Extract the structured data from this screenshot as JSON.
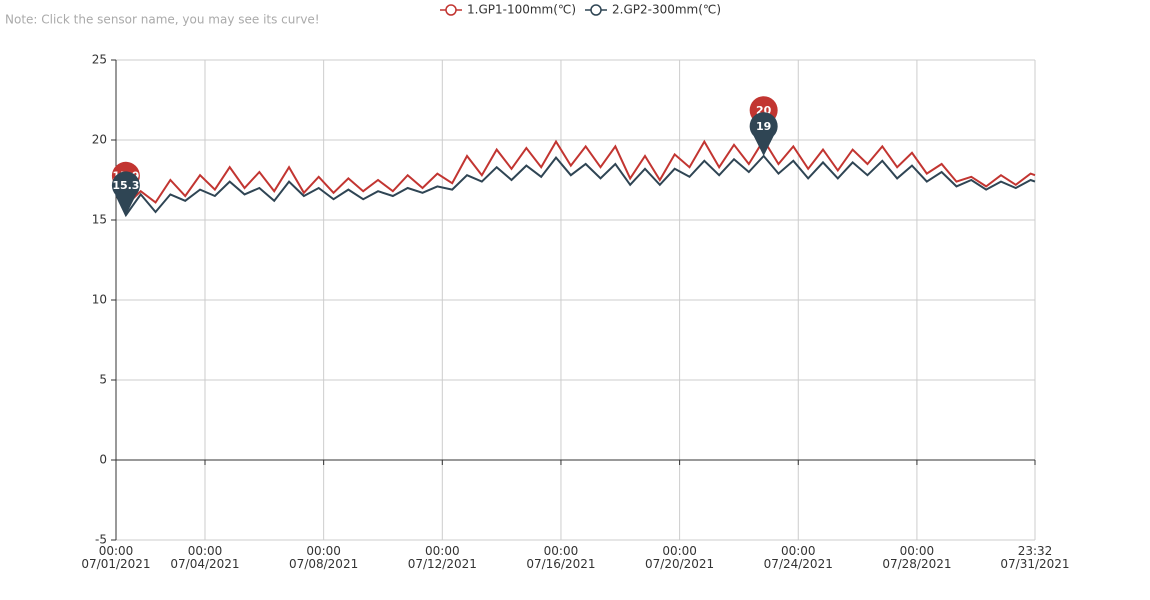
{
  "note": "Note: Click the sensor name, you may see its curve!",
  "chart_data": {
    "type": "line",
    "x": [
      "07/01/2021 00:00",
      "07/01/2021 08:00",
      "07/01/2021 20:00",
      "07/02/2021 08:00",
      "07/02/2021 20:00",
      "07/03/2021 08:00",
      "07/03/2021 20:00",
      "07/04/2021 08:00",
      "07/04/2021 20:00",
      "07/05/2021 08:00",
      "07/05/2021 20:00",
      "07/06/2021 08:00",
      "07/06/2021 20:00",
      "07/07/2021 08:00",
      "07/07/2021 20:00",
      "07/08/2021 08:00",
      "07/08/2021 20:00",
      "07/09/2021 08:00",
      "07/09/2021 20:00",
      "07/10/2021 08:00",
      "07/10/2021 20:00",
      "07/11/2021 08:00",
      "07/11/2021 20:00",
      "07/12/2021 08:00",
      "07/12/2021 20:00",
      "07/13/2021 08:00",
      "07/13/2021 20:00",
      "07/14/2021 08:00",
      "07/14/2021 20:00",
      "07/15/2021 08:00",
      "07/15/2021 20:00",
      "07/16/2021 08:00",
      "07/16/2021 20:00",
      "07/17/2021 08:00",
      "07/17/2021 20:00",
      "07/18/2021 08:00",
      "07/18/2021 20:00",
      "07/19/2021 08:00",
      "07/19/2021 20:00",
      "07/20/2021 08:00",
      "07/20/2021 20:00",
      "07/21/2021 08:00",
      "07/21/2021 20:00",
      "07/22/2021 08:00",
      "07/22/2021 20:00",
      "07/23/2021 08:00",
      "07/23/2021 20:00",
      "07/24/2021 08:00",
      "07/24/2021 20:00",
      "07/25/2021 08:00",
      "07/25/2021 20:00",
      "07/26/2021 08:00",
      "07/26/2021 20:00",
      "07/27/2021 08:00",
      "07/27/2021 20:00",
      "07/28/2021 08:00",
      "07/28/2021 20:00",
      "07/29/2021 08:00",
      "07/29/2021 20:00",
      "07/30/2021 08:00",
      "07/30/2021 20:00",
      "07/31/2021 08:00",
      "07/31/2021 20:00",
      "07/31/2021 23:32"
    ],
    "series": [
      {
        "name": "1.GP1-100mm(℃)",
        "color": "#c23531",
        "values": [
          16.8,
          15.9,
          16.8,
          16.1,
          17.5,
          16.5,
          17.8,
          16.9,
          18.3,
          17.0,
          18.0,
          16.8,
          18.3,
          16.7,
          17.7,
          16.7,
          17.6,
          16.8,
          17.5,
          16.8,
          17.8,
          17.0,
          17.9,
          17.3,
          19.0,
          17.8,
          19.4,
          18.2,
          19.5,
          18.3,
          19.9,
          18.4,
          19.6,
          18.3,
          19.6,
          17.6,
          19.0,
          17.5,
          19.1,
          18.3,
          19.9,
          18.3,
          19.7,
          18.5,
          20,
          18.5,
          19.6,
          18.2,
          19.4,
          18.1,
          19.4,
          18.5,
          19.6,
          18.3,
          19.2,
          17.9,
          18.5,
          17.4,
          17.7,
          17.1,
          17.8,
          17.2,
          17.9,
          17.8
        ]
      },
      {
        "name": "2.GP2-300mm(℃)",
        "color": "#2f4554",
        "values": [
          16.6,
          15.3,
          16.6,
          15.5,
          16.6,
          16.2,
          16.9,
          16.5,
          17.4,
          16.6,
          17.0,
          16.2,
          17.4,
          16.5,
          17.0,
          16.3,
          16.9,
          16.3,
          16.8,
          16.5,
          17.0,
          16.7,
          17.1,
          16.9,
          17.8,
          17.4,
          18.3,
          17.5,
          18.4,
          17.7,
          18.9,
          17.8,
          18.5,
          17.6,
          18.5,
          17.2,
          18.2,
          17.2,
          18.2,
          17.7,
          18.7,
          17.8,
          18.8,
          18.0,
          19,
          17.9,
          18.7,
          17.6,
          18.6,
          17.6,
          18.6,
          17.8,
          18.7,
          17.6,
          18.4,
          17.4,
          18.0,
          17.1,
          17.5,
          16.9,
          17.4,
          17.0,
          17.5,
          17.4
        ]
      }
    ],
    "xlim": [
      "07/01/2021 00:00",
      "07/31/2021 23:32"
    ],
    "xticks": [
      {
        "value": "07/01/2021 00:00",
        "label": "00:00\n07/01/2021"
      },
      {
        "value": "07/04/2021 00:00",
        "label": "00:00\n07/04/2021"
      },
      {
        "value": "07/08/2021 00:00",
        "label": "00:00\n07/08/2021"
      },
      {
        "value": "07/12/2021 00:00",
        "label": "00:00\n07/12/2021"
      },
      {
        "value": "07/16/2021 00:00",
        "label": "00:00\n07/16/2021"
      },
      {
        "value": "07/20/2021 00:00",
        "label": "00:00\n07/20/2021"
      },
      {
        "value": "07/24/2021 00:00",
        "label": "00:00\n07/24/2021"
      },
      {
        "value": "07/28/2021 00:00",
        "label": "00:00\n07/28/2021"
      },
      {
        "value": "07/31/2021 23:32",
        "label": "23:32\n07/31/2021"
      }
    ],
    "ylim": [
      -5,
      25
    ],
    "yticks": [
      -5,
      0,
      5,
      10,
      15,
      20,
      25
    ],
    "grid": true,
    "legend": "top"
  }
}
